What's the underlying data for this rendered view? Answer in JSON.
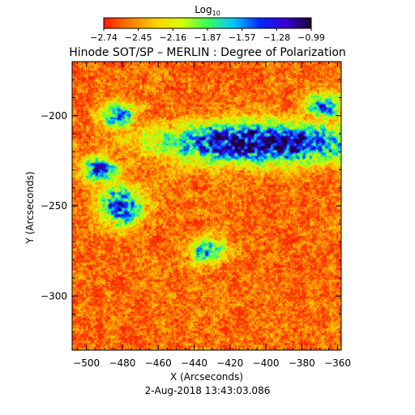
{
  "chart_data": {
    "type": "heatmap",
    "title": "Hinode SOT/SP – MERLIN : Degree of Polarization",
    "timestamp": "2‑Aug‑2018 13:43:03.086",
    "xlabel": "X (Arcseconds)",
    "ylabel": "Y (Arcseconds)",
    "xlim": [
      -508,
      -358
    ],
    "ylim": [
      -330,
      -170
    ],
    "x_ticks": [
      -500,
      -480,
      -460,
      -440,
      -420,
      -400,
      -380,
      -360
    ],
    "y_ticks": [
      -200,
      -250,
      -300
    ],
    "colorbar": {
      "label_base": "Log",
      "label_sub": "10",
      "range": [
        -2.74,
        -0.99
      ],
      "tick_labels": [
        "−2.74",
        "−2.45",
        "−2.16",
        "−1.87",
        "−1.57",
        "−1.28",
        "−0.99"
      ],
      "colors": [
        "#ff1a00",
        "#ff7a00",
        "#ffd000",
        "#d8ff00",
        "#37ff5a",
        "#00c8ff",
        "#0026ff",
        "#3a00d8",
        "#1a0033"
      ]
    },
    "background_level": -2.55,
    "features": [
      {
        "name": "central network lane",
        "x": [
          -460,
          -345
        ],
        "y": [
          -225,
          -205
        ],
        "peak_log": -1.05
      },
      {
        "name": "left cluster",
        "x": [
          -490,
          -470
        ],
        "y": [
          -260,
          -240
        ],
        "peak_log": -1.3
      },
      {
        "name": "left patch",
        "x": [
          -500,
          -485
        ],
        "y": [
          -235,
          -225
        ],
        "peak_log": -1.4
      },
      {
        "name": "upper-left patch",
        "x": [
          -490,
          -475
        ],
        "y": [
          -205,
          -195
        ],
        "peak_log": -1.5
      },
      {
        "name": "upper-right patch",
        "x": [
          -375,
          -360
        ],
        "y": [
          -200,
          -190
        ],
        "peak_log": -1.45
      },
      {
        "name": "lower-center patch",
        "x": [
          -440,
          -425
        ],
        "y": [
          -280,
          -270
        ],
        "peak_log": -1.6
      }
    ]
  }
}
